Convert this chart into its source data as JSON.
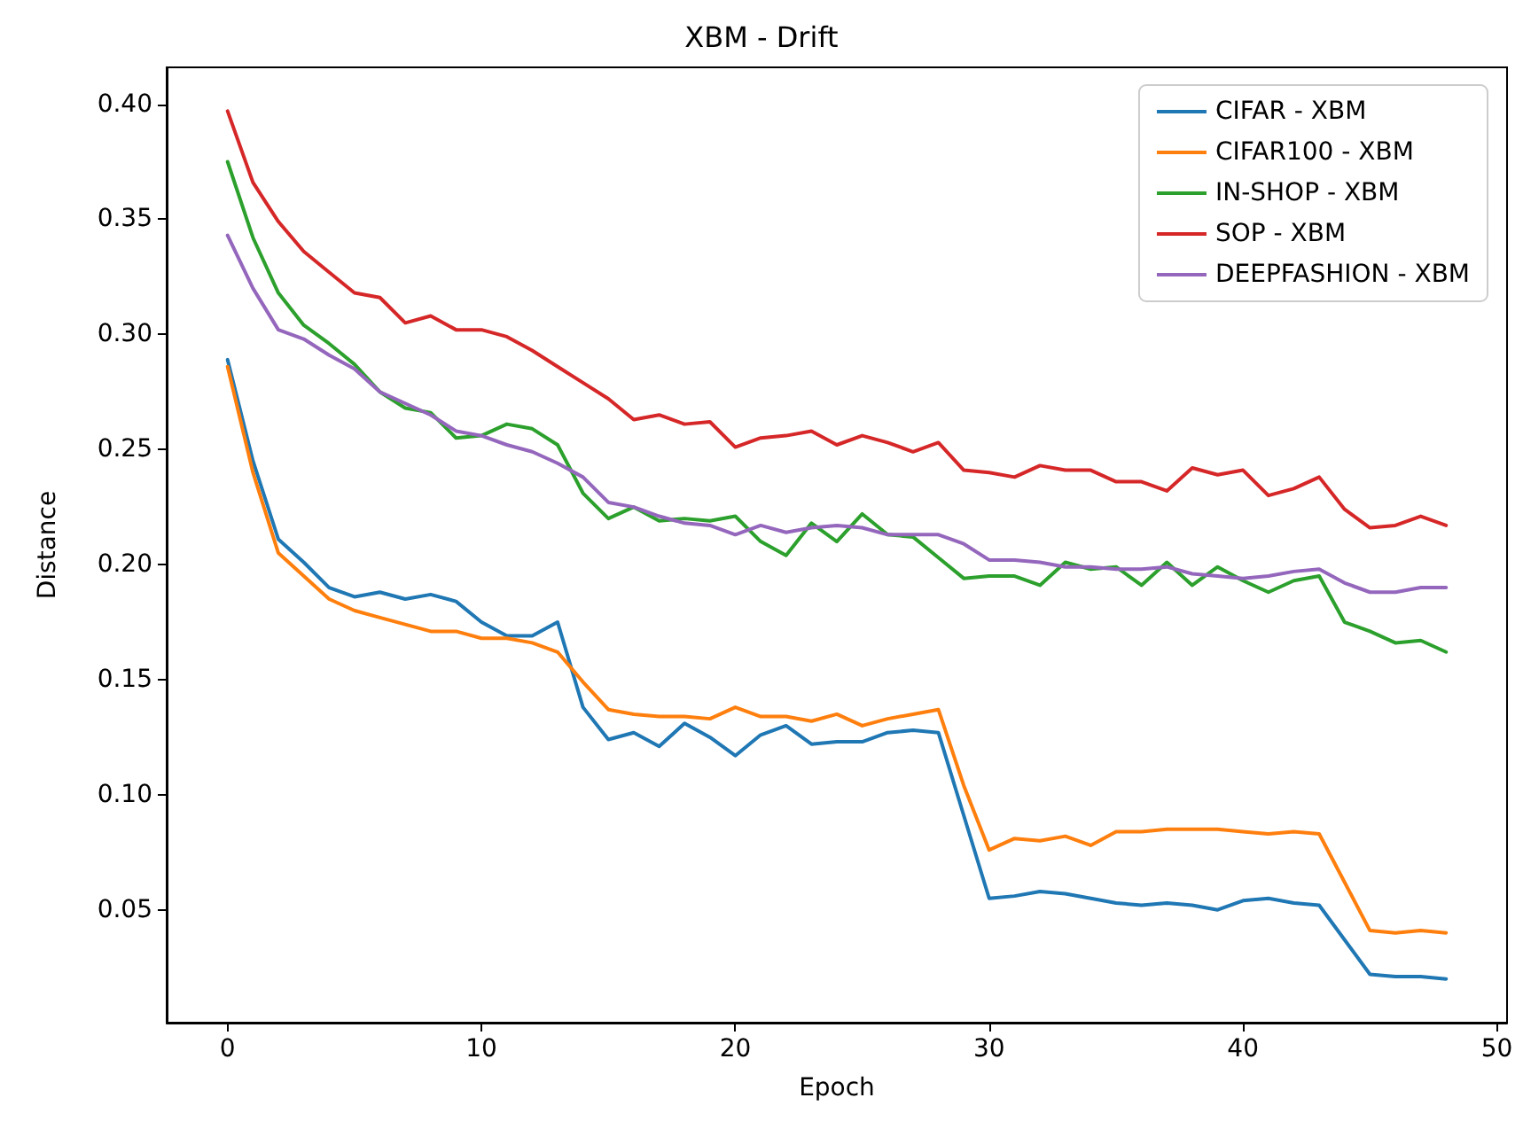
{
  "chart_data": {
    "type": "line",
    "title": "XBM - Drift",
    "xlabel": "Epoch",
    "ylabel": "Distance",
    "x": [
      0,
      1,
      2,
      3,
      4,
      5,
      6,
      7,
      8,
      9,
      10,
      11,
      12,
      13,
      14,
      15,
      16,
      17,
      18,
      19,
      20,
      21,
      22,
      23,
      24,
      25,
      26,
      27,
      28,
      29,
      30,
      31,
      32,
      33,
      34,
      35,
      36,
      37,
      38,
      39,
      40,
      41,
      42,
      43,
      44,
      45,
      46,
      47,
      48
    ],
    "xlim": [
      -2.4,
      50.4
    ],
    "xticks": [
      0,
      10,
      20,
      30,
      40,
      50
    ],
    "ylim": [
      0.001,
      0.416
    ],
    "yticks": [
      {
        "value": 0.05,
        "label": "0.05"
      },
      {
        "value": 0.1,
        "label": "0.10"
      },
      {
        "value": 0.15,
        "label": "0.15"
      },
      {
        "value": 0.2,
        "label": "0.20"
      },
      {
        "value": 0.25,
        "label": "0.25"
      },
      {
        "value": 0.3,
        "label": "0.30"
      },
      {
        "value": 0.35,
        "label": "0.35"
      },
      {
        "value": 0.4,
        "label": "0.40"
      }
    ],
    "grid": false,
    "legend": "top right",
    "marker": "none",
    "line_style": "solid",
    "series": [
      {
        "name": "CIFAR - XBM",
        "color": "#1f77b4",
        "values": [
          0.289,
          0.245,
          0.211,
          0.201,
          0.19,
          0.186,
          0.188,
          0.185,
          0.187,
          0.184,
          0.175,
          0.169,
          0.169,
          0.175,
          0.138,
          0.124,
          0.127,
          0.121,
          0.131,
          0.125,
          0.117,
          0.126,
          0.13,
          0.122,
          0.123,
          0.123,
          0.127,
          0.128,
          0.127,
          0.091,
          0.055,
          0.056,
          0.058,
          0.057,
          0.055,
          0.053,
          0.052,
          0.053,
          0.052,
          0.05,
          0.054,
          0.055,
          0.053,
          0.052,
          0.037,
          0.022,
          0.021,
          0.021,
          0.02
        ]
      },
      {
        "name": "CIFAR100 - XBM",
        "color": "#ff7f0e",
        "values": [
          0.286,
          0.24,
          0.205,
          0.195,
          0.185,
          0.18,
          0.177,
          0.174,
          0.171,
          0.171,
          0.168,
          0.168,
          0.166,
          0.162,
          0.149,
          0.137,
          0.135,
          0.134,
          0.134,
          0.133,
          0.138,
          0.134,
          0.134,
          0.132,
          0.135,
          0.13,
          0.133,
          0.135,
          0.137,
          0.104,
          0.076,
          0.081,
          0.08,
          0.082,
          0.078,
          0.084,
          0.084,
          0.085,
          0.085,
          0.085,
          0.084,
          0.083,
          0.084,
          0.083,
          0.062,
          0.041,
          0.04,
          0.041,
          0.04
        ]
      },
      {
        "name": "IN-SHOP - XBM",
        "color": "#2ca02c",
        "values": [
          0.375,
          0.342,
          0.318,
          0.304,
          0.296,
          0.287,
          0.275,
          0.268,
          0.266,
          0.255,
          0.256,
          0.261,
          0.259,
          0.252,
          0.231,
          0.22,
          0.225,
          0.219,
          0.22,
          0.219,
          0.221,
          0.21,
          0.204,
          0.218,
          0.21,
          0.222,
          0.213,
          0.212,
          0.203,
          0.194,
          0.195,
          0.195,
          0.191,
          0.201,
          0.198,
          0.199,
          0.191,
          0.201,
          0.191,
          0.199,
          0.193,
          0.188,
          0.193,
          0.195,
          0.175,
          0.171,
          0.166,
          0.167,
          0.162
        ]
      },
      {
        "name": "SOP - XBM",
        "color": "#d62728",
        "values": [
          0.397,
          0.366,
          0.349,
          0.336,
          0.327,
          0.318,
          0.316,
          0.305,
          0.308,
          0.302,
          0.302,
          0.299,
          0.293,
          0.286,
          0.279,
          0.272,
          0.263,
          0.265,
          0.261,
          0.262,
          0.251,
          0.255,
          0.256,
          0.258,
          0.252,
          0.256,
          0.253,
          0.249,
          0.253,
          0.241,
          0.24,
          0.238,
          0.243,
          0.241,
          0.241,
          0.236,
          0.236,
          0.232,
          0.242,
          0.239,
          0.241,
          0.23,
          0.233,
          0.238,
          0.224,
          0.216,
          0.217,
          0.221,
          0.217
        ]
      },
      {
        "name": "DEEPFASHION - XBM",
        "color": "#9467bd",
        "values": [
          0.343,
          0.32,
          0.302,
          0.298,
          0.291,
          0.285,
          0.275,
          0.27,
          0.265,
          0.258,
          0.256,
          0.252,
          0.249,
          0.244,
          0.238,
          0.227,
          0.225,
          0.221,
          0.218,
          0.217,
          0.213,
          0.217,
          0.214,
          0.216,
          0.217,
          0.216,
          0.213,
          0.213,
          0.213,
          0.209,
          0.202,
          0.202,
          0.201,
          0.199,
          0.199,
          0.198,
          0.198,
          0.199,
          0.196,
          0.195,
          0.194,
          0.195,
          0.197,
          0.198,
          0.192,
          0.188,
          0.188,
          0.19,
          0.19
        ]
      }
    ]
  }
}
